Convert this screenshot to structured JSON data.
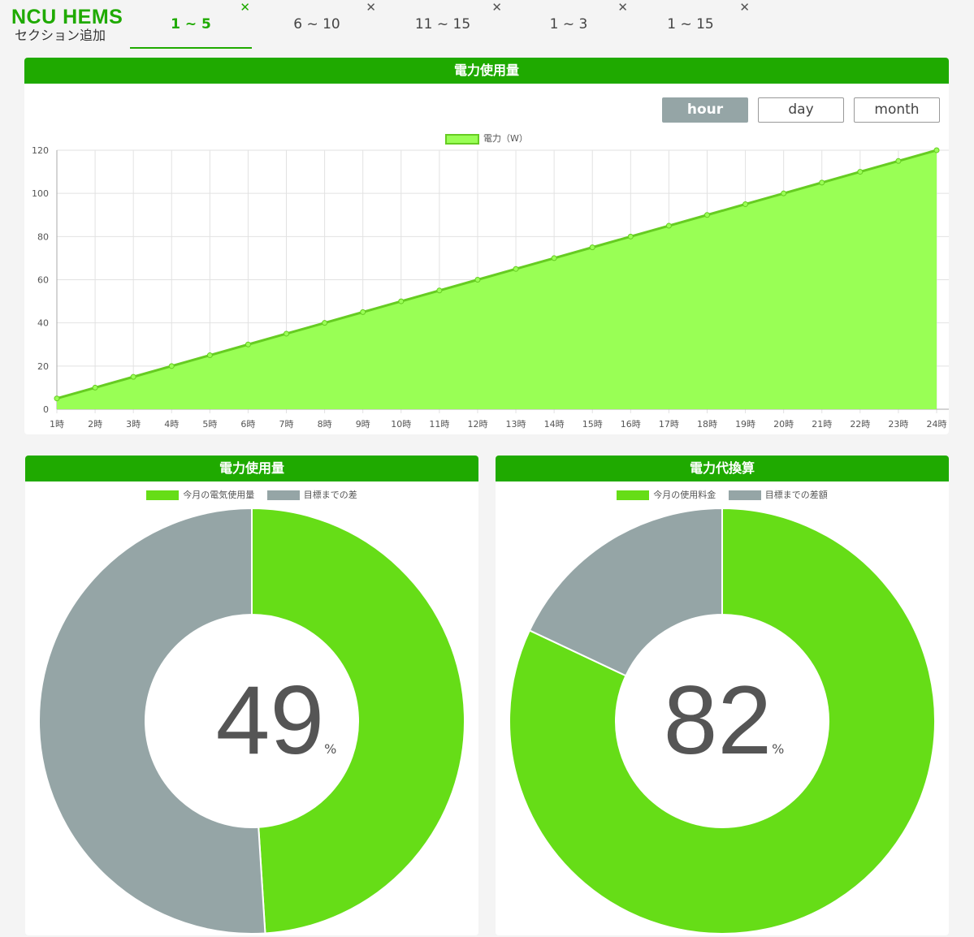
{
  "brand": {
    "title": "NCU HEMS",
    "add_section": "セクション追加"
  },
  "tabs": [
    {
      "label": "1 ~ 5",
      "active": true
    },
    {
      "label": "6 ~ 10"
    },
    {
      "label": "11 ~ 15"
    },
    {
      "label": "1 ~ 3"
    },
    {
      "label": "1 ~ 15"
    }
  ],
  "close_glyph": "✕",
  "line_panel": {
    "title": "電力使用量",
    "buttons": [
      "hour",
      "day",
      "month"
    ],
    "active_button": "hour"
  },
  "usage_panel": {
    "title": "電力使用量",
    "legend": [
      "今月の電気使用量",
      "目標までの差"
    ],
    "value": "49",
    "unit": "%"
  },
  "cost_panel": {
    "title": "電力代換算",
    "legend": [
      "今月の使用料金",
      "目標までの差額"
    ],
    "value": "82",
    "unit": "%"
  },
  "colors": {
    "brand_green": "#1faa00",
    "area_fill": "#99ff55",
    "line": "#66cc22",
    "donut_green": "#66dd17",
    "donut_gray": "#95a5a6"
  },
  "chart_data": [
    {
      "type": "area",
      "series": [
        {
          "name": "電力（W）",
          "values": [
            5,
            10,
            15,
            20,
            25,
            30,
            35,
            40,
            45,
            50,
            55,
            60,
            65,
            70,
            75,
            80,
            85,
            90,
            95,
            100,
            105,
            110,
            115,
            120
          ]
        }
      ],
      "categories": [
        "1時",
        "2時",
        "3時",
        "4時",
        "5時",
        "6時",
        "7時",
        "8時",
        "9時",
        "10時",
        "11時",
        "12時",
        "13時",
        "14時",
        "15時",
        "16時",
        "17時",
        "18時",
        "19時",
        "20時",
        "21時",
        "22時",
        "23時",
        "24時"
      ],
      "yticks": [
        "0",
        "20",
        "40",
        "60",
        "80",
        "100",
        "120"
      ],
      "ylim": [
        0,
        120
      ],
      "grid": true,
      "legend_position": "top"
    },
    {
      "type": "pie",
      "categories": [
        "今月の電気使用量",
        "目標までの差"
      ],
      "values": [
        49,
        51
      ]
    },
    {
      "type": "pie",
      "categories": [
        "今月の使用料金",
        "目標までの差額"
      ],
      "values": [
        82,
        18
      ]
    }
  ]
}
